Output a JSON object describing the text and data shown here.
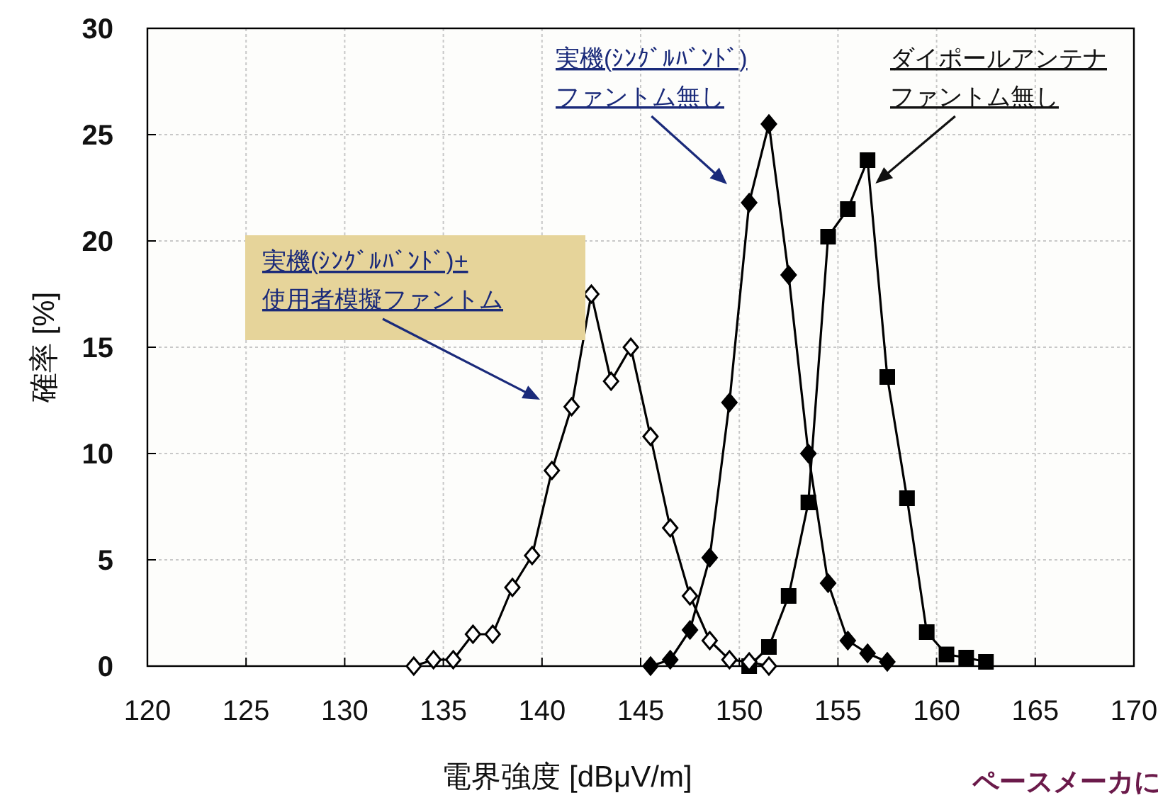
{
  "chart_data": {
    "type": "line",
    "xlabel": "電界強度 [dBμV/m]",
    "ylabel": "確率 [%]",
    "xlim": [
      120,
      170
    ],
    "xticks": [
      120,
      125,
      130,
      135,
      140,
      145,
      150,
      155,
      160,
      165,
      170
    ],
    "ylim": [
      0,
      30
    ],
    "yticks": [
      0,
      5,
      10,
      15,
      20,
      25,
      30
    ],
    "grid": true,
    "line_style": "solid",
    "series": [
      {
        "color": "#000000",
        "marker": "diamond",
        "x": [
          133.5,
          134.5,
          135.5,
          136.5,
          137.5,
          138.5,
          139.5,
          140.5,
          141.5,
          142.5,
          143.5,
          144.5,
          145.5,
          146.5,
          147.5,
          148.5,
          149.5,
          150.5,
          151.5
        ],
        "values": [
          0,
          0.3,
          0.3,
          1.5,
          1.5,
          3.7,
          5.2,
          9.2,
          12.2,
          17.5,
          13.4,
          15.0,
          10.8,
          6.5,
          3.3,
          1.2,
          0.3,
          0.2,
          0
        ]
      },
      {
        "color": "#000000",
        "marker": "diamond",
        "x": [
          145.5,
          146.5,
          147.5,
          148.5,
          149.5,
          150.5,
          151.5,
          152.5,
          153.5,
          154.5,
          155.5,
          156.5,
          157.5
        ],
        "values": [
          0,
          0.3,
          1.7,
          5.1,
          12.4,
          21.8,
          25.5,
          18.4,
          10.0,
          3.9,
          1.2,
          0.6,
          0.2
        ]
      },
      {
        "color": "#000000",
        "marker": "square",
        "x": [
          150.5,
          151.5,
          152.5,
          153.5,
          154.5,
          155.5,
          156.5,
          157.5,
          158.5,
          159.5,
          160.5,
          161.5,
          162.5
        ],
        "values": [
          0,
          0.9,
          3.3,
          7.7,
          20.2,
          21.5,
          23.8,
          13.6,
          7.9,
          1.6,
          0.55,
          0.4,
          0.2
        ]
      }
    ],
    "annotations": [
      "実機(ｼﾝｸﾞﾙﾊﾞﾝﾄﾞ)+\n使用者模擬ファントム",
      "実機(ｼﾝｸﾞﾙﾊﾞﾝﾄﾞ)\nファントム無し",
      {
        "text": "ダイポールアンテナファントム無し",
        "x": 156.9,
        "y": 22.7
      },
      "ペースメーカに"
    ]
  }
}
